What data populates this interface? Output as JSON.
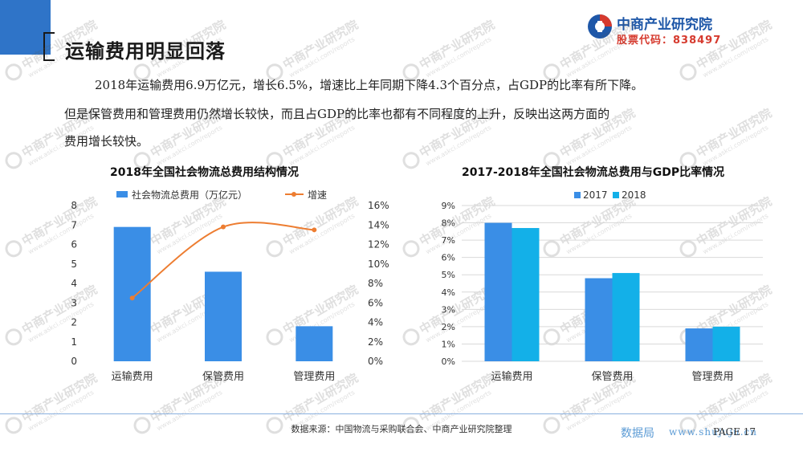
{
  "header": {
    "title": "运输费用明显回落",
    "logo_name": "中商产业研究院",
    "logo_code": "股票代码：838497"
  },
  "paragraph": {
    "line1": "2018年运输费用6.9万亿元，增长6.5%，增速比上年同期下降4.3个百分点，占GDP的比率有所下降。",
    "line2": "但是保管费用和管理费用仍然增长较快，而且占GDP的比率也都有不同程度的上升，反映出这两方面的",
    "line3": "费用增长较快。"
  },
  "watermark": {
    "name": "中商产业研究院",
    "url": "www.askci.com/reports"
  },
  "chart_data": [
    {
      "type": "bar",
      "title": "2018年全国社会物流总费用结构情况",
      "categories": [
        "运输费用",
        "保管费用",
        "管理费用"
      ],
      "series": [
        {
          "name": "社会物流总费用（万亿元）",
          "kind": "bar",
          "axis": "left",
          "color": "#3a8ee6",
          "values": [
            6.9,
            4.6,
            1.8
          ]
        },
        {
          "name": "增速",
          "kind": "line",
          "axis": "right",
          "color": "#ed7d31",
          "values": [
            6.5,
            13.8,
            13.5
          ]
        }
      ],
      "ylim_left": [
        0,
        8
      ],
      "yticks_left": [
        "0",
        "1",
        "2",
        "3",
        "4",
        "5",
        "6",
        "7",
        "8"
      ],
      "ylim_right": [
        0,
        16
      ],
      "yticks_right": [
        "0%",
        "2%",
        "4%",
        "6%",
        "8%",
        "10%",
        "12%",
        "14%",
        "16%"
      ],
      "legend": "top"
    },
    {
      "type": "bar",
      "title": "2017-2018年全国社会物流总费用与GDP比率情况",
      "categories": [
        "运输费用",
        "保管费用",
        "管理费用"
      ],
      "series": [
        {
          "name": "2017",
          "color": "#3a8ee6",
          "values": [
            8.0,
            4.8,
            1.9
          ]
        },
        {
          "name": "2018",
          "color": "#13b0e8",
          "values": [
            7.7,
            5.1,
            2.0
          ]
        }
      ],
      "ylim": [
        0,
        9
      ],
      "yticks": [
        "0%",
        "1%",
        "2%",
        "3%",
        "4%",
        "5%",
        "6%",
        "7%",
        "8%",
        "9%"
      ],
      "legend": "top"
    }
  ],
  "footer": {
    "source": "数据来源：中国物流与采购联合会、中商产业研究院整理",
    "brand": "数据局",
    "url": "www.shujuju.cn",
    "page": "PAGE 17"
  }
}
